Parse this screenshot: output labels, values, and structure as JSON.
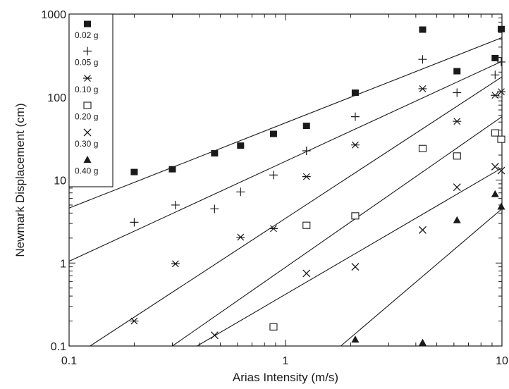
{
  "chart_data": {
    "type": "scatter",
    "title": "",
    "xlabel": "Arias Intensity (m/s)",
    "ylabel": "Newmark Displacement (cm)",
    "x_scale": "log",
    "y_scale": "log",
    "xlim": [
      0.1,
      10
    ],
    "ylim": [
      0.1,
      1000
    ],
    "x_ticks": [
      {
        "value": 0.1,
        "label": "0.1"
      },
      {
        "value": 1,
        "label": "1"
      },
      {
        "value": 10,
        "label": "10"
      }
    ],
    "y_ticks": [
      {
        "value": 0.1,
        "label": "0.1"
      },
      {
        "value": 1,
        "label": "1"
      },
      {
        "value": 10,
        "label": "10"
      },
      {
        "value": 100,
        "label": "100"
      },
      {
        "value": 1000,
        "label": "1000"
      }
    ],
    "grid": false,
    "legend_position": "top-left",
    "series": [
      {
        "name": "0.02 g",
        "marker": "filled-square",
        "points": [
          [
            0.2,
            12.5
          ],
          [
            0.3,
            13.5
          ],
          [
            0.47,
            21
          ],
          [
            0.62,
            26
          ],
          [
            0.88,
            36
          ],
          [
            1.25,
            45
          ],
          [
            2.1,
            113
          ],
          [
            4.3,
            650
          ],
          [
            6.2,
            205
          ],
          [
            9.3,
            295
          ],
          [
            10.0,
            660
          ]
        ],
        "fit_line": [
          [
            0.1,
            4.6
          ],
          [
            10,
            520
          ]
        ]
      },
      {
        "name": "0.05 g",
        "marker": "plus",
        "points": [
          [
            0.2,
            3.1
          ],
          [
            0.31,
            5.0
          ],
          [
            0.47,
            4.5
          ],
          [
            0.62,
            7.2
          ],
          [
            0.88,
            11.5
          ],
          [
            1.25,
            22.5
          ],
          [
            2.1,
            58
          ],
          [
            4.3,
            285
          ],
          [
            6.2,
            113
          ],
          [
            9.3,
            185
          ],
          [
            10.0,
            265
          ]
        ],
        "fit_line": [
          [
            0.1,
            1.05
          ],
          [
            10,
            270
          ]
        ]
      },
      {
        "name": "0.10 g",
        "marker": "asterisk",
        "points": [
          [
            0.2,
            0.2
          ],
          [
            0.31,
            0.98
          ],
          [
            0.62,
            2.05
          ],
          [
            0.88,
            2.6
          ],
          [
            1.25,
            11
          ],
          [
            2.1,
            26.5
          ],
          [
            4.3,
            126
          ],
          [
            6.2,
            51
          ],
          [
            9.3,
            105
          ],
          [
            10.0,
            116
          ]
        ],
        "fit_line": [
          [
            0.125,
            0.1
          ],
          [
            10,
            175
          ]
        ]
      },
      {
        "name": "0.20 g",
        "marker": "open-square",
        "points": [
          [
            0.88,
            0.17
          ],
          [
            1.25,
            2.85
          ],
          [
            2.1,
            3.7
          ],
          [
            4.3,
            24
          ],
          [
            6.2,
            19.5
          ],
          [
            9.3,
            37
          ],
          [
            10.0,
            31
          ]
        ],
        "fit_line": [
          [
            0.3,
            0.1
          ],
          [
            10,
            58
          ]
        ]
      },
      {
        "name": "0.30 g",
        "marker": "x",
        "points": [
          [
            0.47,
            0.135
          ],
          [
            1.25,
            0.75
          ],
          [
            2.1,
            0.9
          ],
          [
            4.3,
            2.5
          ],
          [
            6.2,
            8.2
          ],
          [
            9.3,
            14.5
          ],
          [
            10.0,
            13
          ]
        ],
        "fit_line": [
          [
            0.39,
            0.1
          ],
          [
            10,
            14
          ]
        ]
      },
      {
        "name": "0.40 g",
        "marker": "filled-triangle",
        "points": [
          [
            2.1,
            0.12
          ],
          [
            4.3,
            0.11
          ],
          [
            6.2,
            3.3
          ],
          [
            9.3,
            6.8
          ],
          [
            10.0,
            4.8
          ]
        ],
        "fit_line": [
          [
            1.8,
            0.1
          ],
          [
            10,
            4.5
          ]
        ]
      }
    ]
  },
  "colors": {
    "ink": "#1a1a1a",
    "background": "#ffffff"
  }
}
